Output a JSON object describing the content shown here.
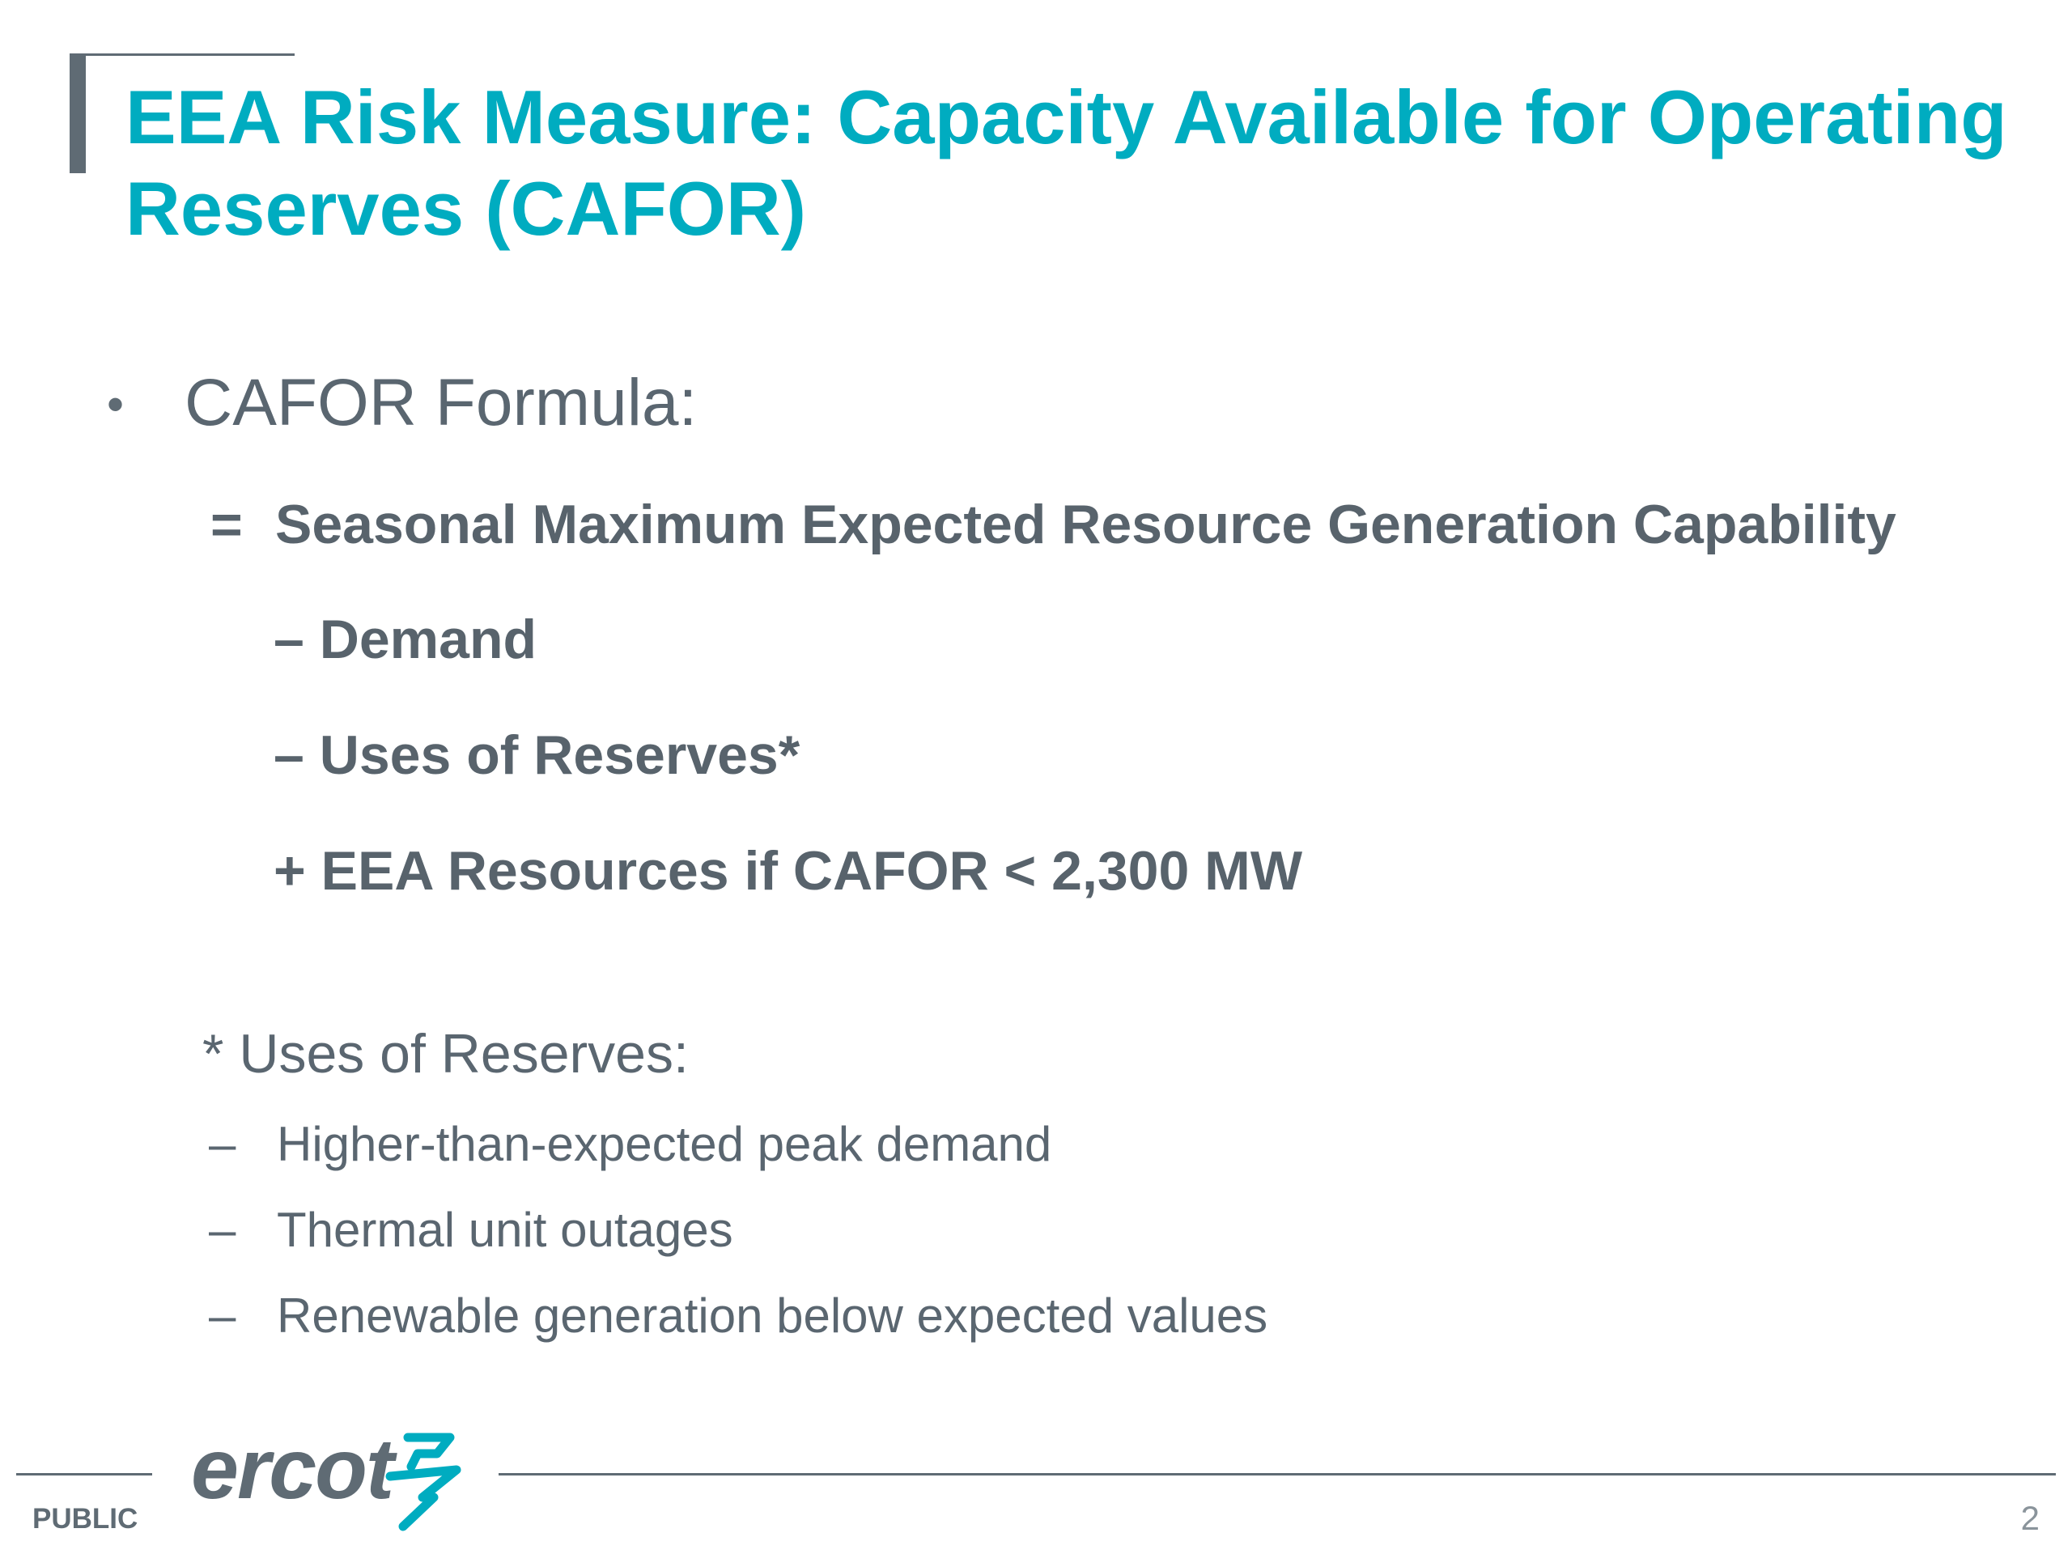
{
  "slide": {
    "title": "EEA Risk Measure: Capacity Available for Operating Reserves (CAFOR)",
    "bullet_symbol": "•",
    "formula_heading": "CAFOR Formula:",
    "formula_lines": [
      {
        "operator": "=",
        "text": "Seasonal Maximum Expected Resource Generation Capability"
      },
      {
        "operator": "–",
        "text": "Demand"
      },
      {
        "operator": "–",
        "text": "Uses of Reserves*"
      },
      {
        "operator": "+",
        "text": "EEA Resources if CAFOR < 2,300 MW"
      }
    ],
    "footnote": {
      "title": "* Uses of Reserves:",
      "dash": "–",
      "items": [
        "Higher-than-expected peak demand",
        "Thermal unit outages",
        "Renewable generation below expected values"
      ]
    }
  },
  "footer": {
    "classification": "PUBLIC",
    "logo_text": "ercot",
    "page_number": "2"
  },
  "colors": {
    "title": "#00acc0",
    "body_text": "#5a6670",
    "rule": "#5f6b74",
    "logo_mark": "#00acc0"
  },
  "icons": {
    "logo_mark": "ercot-lightning-bolt-icon"
  }
}
